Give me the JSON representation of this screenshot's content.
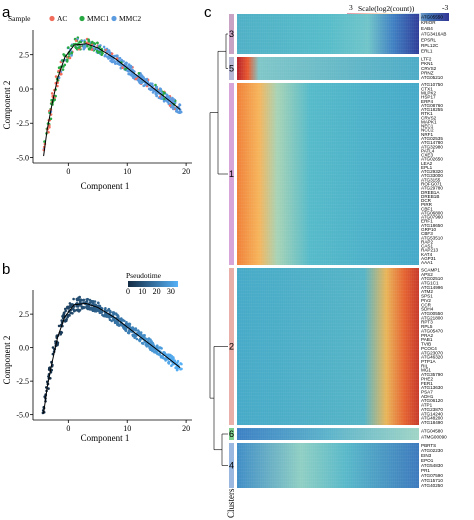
{
  "panels": {
    "a": "a",
    "b": "b",
    "c": "c"
  },
  "chart_data": [
    {
      "type": "scatter",
      "panel": "a",
      "xlabel": "Component 1",
      "ylabel": "Component 2",
      "xlim": [
        -6,
        21
      ],
      "ylim": [
        -5.4,
        4.3
      ],
      "xticks": [
        0,
        10,
        20
      ],
      "yticks": [
        -5.0,
        -2.5,
        0.0,
        2.5
      ],
      "legend_title": "Sample",
      "legend_placement": "top",
      "series": [
        {
          "name": "AC",
          "color": "#f26c5b"
        },
        {
          "name": "MMC1",
          "color": "#27a843"
        },
        {
          "name": "MMC2",
          "color": "#5b9be0"
        }
      ],
      "trajectory": [
        [
          -4.2,
          -4.9
        ],
        [
          -3.6,
          -3.0
        ],
        [
          -2.8,
          -1.2
        ],
        [
          -1.8,
          0.8
        ],
        [
          -0.6,
          2.3
        ],
        [
          1,
          3.2
        ],
        [
          3,
          3.3
        ],
        [
          5,
          3.0
        ],
        [
          8,
          2.2
        ],
        [
          11,
          1.2
        ],
        [
          14,
          0.2
        ],
        [
          17,
          -0.8
        ],
        [
          19,
          -1.5
        ]
      ]
    },
    {
      "type": "scatter",
      "panel": "b",
      "xlabel": "Component 1",
      "ylabel": "Component 2",
      "xlim": [
        -6,
        21
      ],
      "ylim": [
        -5.4,
        4.3
      ],
      "xticks": [
        0,
        10,
        20
      ],
      "yticks": [
        -5.0,
        -2.5,
        0.0,
        2.5
      ],
      "legend_title": "Pseudotime",
      "colorbar_ticks": [
        0,
        10,
        20,
        30
      ],
      "colorbar_range": [
        0,
        35
      ],
      "colors": {
        "low": "#132b43",
        "high": "#56b1f7"
      },
      "trajectory": [
        [
          -4.2,
          -4.9
        ],
        [
          -3.6,
          -3.0
        ],
        [
          -2.8,
          -1.2
        ],
        [
          -1.8,
          0.8
        ],
        [
          -0.6,
          2.3
        ],
        [
          1,
          3.2
        ],
        [
          3,
          3.3
        ],
        [
          5,
          3.0
        ],
        [
          8,
          2.2
        ],
        [
          11,
          1.2
        ],
        [
          14,
          0.2
        ],
        [
          17,
          -0.8
        ],
        [
          19,
          -1.5
        ]
      ]
    },
    {
      "type": "heatmap",
      "panel": "c",
      "colorbar_title": "Scale(log2(count))",
      "colorbar_ticks": [
        3,
        -3
      ],
      "colorbar_colors": [
        "#a50026",
        "#f46d43",
        "#fee090",
        "#abd9e9",
        "#4575b4",
        "#313695"
      ],
      "cluster_label": "Clusters",
      "clusters": [
        {
          "id": "3",
          "color": "#c9a3c4",
          "genes": [
            "ATG05550",
            "KRIOR",
            "EAB4",
            "ATG3416AB",
            "EPSRL",
            "RPL12C",
            "ERL1"
          ]
        },
        {
          "id": "5",
          "color": "#b7b7d6",
          "genes": [
            "LTF2",
            "PKN1",
            "CRVS2",
            "PRNZ",
            "ATG05210"
          ]
        },
        {
          "id": "1",
          "color": "#d7a5d7",
          "genes": [
            "ATG10750",
            "CTX1",
            "MLPK2",
            "HSP17",
            "ERP4",
            "ATG08760",
            "ATG18255",
            "RTK1",
            "CRVS2",
            "MAPK1",
            "NEC1",
            "NCC2",
            "NRF1",
            "ATG02535",
            "ATG14780",
            "ATG32980",
            "PATL4",
            "CXE3",
            "ATG02650",
            "LEA2",
            "EPL1",
            "ATG29320",
            "ATG33000",
            "ATG3155",
            "ROFG071",
            "ATG29780",
            "DREB1A",
            "DREB1B",
            "DCR",
            "PIRR",
            "CBF1",
            "ATG06800",
            "ATG07960",
            "ERF1",
            "ATG18650",
            "GRP10",
            "CBF3",
            "ATG53510",
            "RAP2",
            "CAS1",
            "RAP213",
            "KAT4",
            "AGP31",
            "AAA1"
          ]
        },
        {
          "id": "2",
          "color": "#e8b0a8",
          "genes": [
            "SCAMP1",
            "APS2",
            "ATG02510",
            "ATG1C1",
            "ATG14996",
            "ATM2",
            "SPS1",
            "PIV2",
            "CCR",
            "SDH4",
            "ATG00550",
            "ATG21800",
            "RPT3",
            "RPL5",
            "ATG05470",
            "PRA2",
            "PAB1",
            "TVIB",
            "PCOC4",
            "ATG23070",
            "ATG46320",
            "PTP1A",
            "RIL",
            "MG1",
            "ATG35790",
            "PHE2",
            "FER1",
            "ATG13630",
            "PSA7",
            "ADH1",
            "ATG06120",
            "ATP1",
            "ATG23870",
            "ATG14240",
            "ATG48200",
            "ATG18490"
          ]
        },
        {
          "id": "6",
          "color": "#7fcf8e",
          "genes": [
            "ATG04580",
            "ATMG00090"
          ]
        },
        {
          "id": "4",
          "color": "#9ab8e0",
          "genes": [
            "PBRTS",
            "ATG02230",
            "EIN3",
            "EPO1",
            "ATG54830",
            "PR1",
            "ATG07590",
            "ATG15710",
            "ATG40250"
          ]
        }
      ]
    }
  ]
}
